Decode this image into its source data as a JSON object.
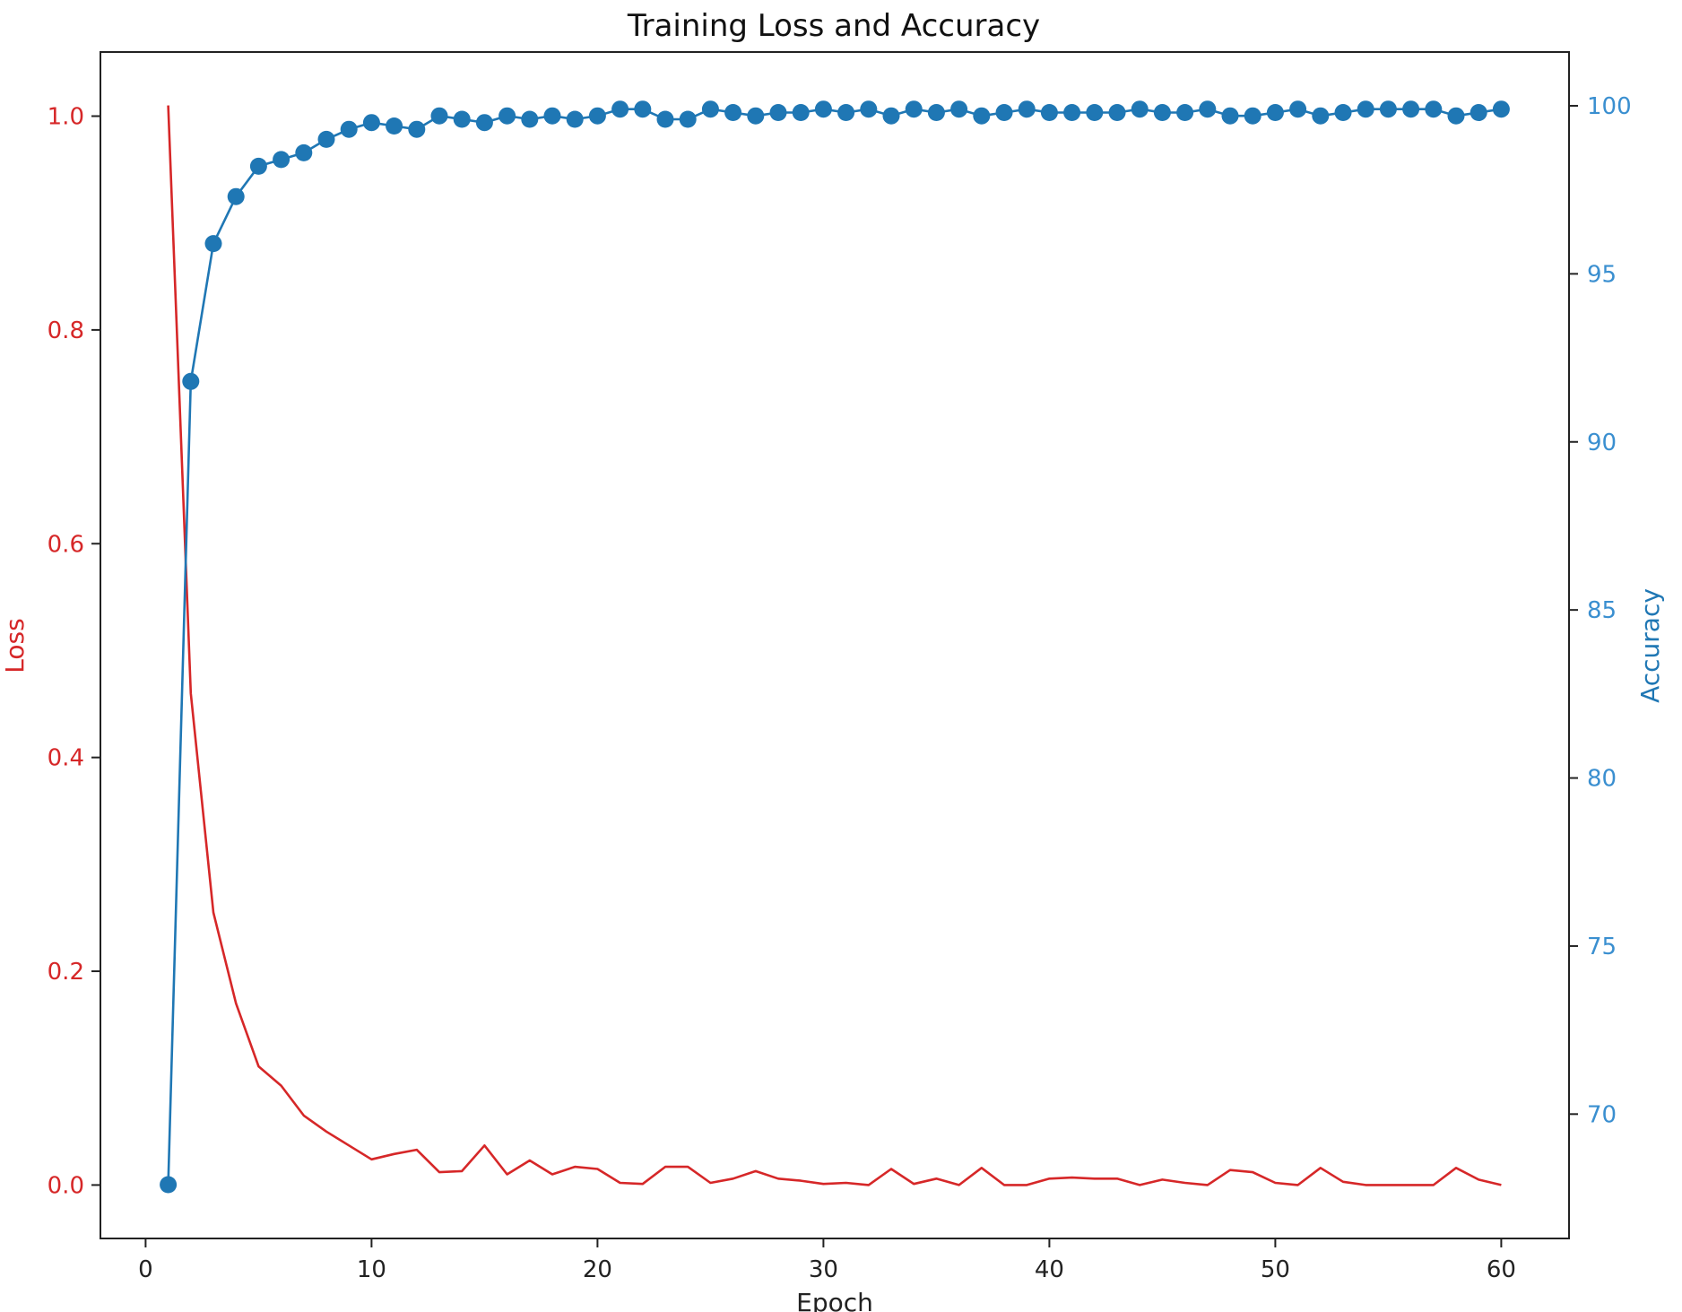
{
  "colors": {
    "loss": "#d62728",
    "accuracy": "#1f77b4",
    "accuracy_tick_text": "#3a8fd0",
    "frame": "#222222",
    "text": "#222222"
  },
  "chart_data": {
    "type": "line",
    "title": "Training Loss and Accuracy",
    "xlabel": "Epoch",
    "ylabel_left": "Loss",
    "ylabel_right": "Accuracy",
    "xlim": [
      -2,
      63
    ],
    "ylim_left": [
      -0.05,
      1.06
    ],
    "ylim_right": [
      66.3,
      101.6
    ],
    "xticks": [
      0,
      10,
      20,
      30,
      40,
      50,
      60
    ],
    "yticks_left": [
      0.0,
      0.2,
      0.4,
      0.6,
      0.8,
      1.0
    ],
    "yticks_right": [
      70,
      75,
      80,
      85,
      90,
      95,
      100
    ],
    "ytick_labels_left": [
      "0.0",
      "0.2",
      "0.4",
      "0.6",
      "0.8",
      "1.0"
    ],
    "grid": false,
    "legend": "none",
    "x": [
      1,
      2,
      3,
      4,
      5,
      6,
      7,
      8,
      9,
      10,
      11,
      12,
      13,
      14,
      15,
      16,
      17,
      18,
      19,
      20,
      21,
      22,
      23,
      24,
      25,
      26,
      27,
      28,
      29,
      30,
      31,
      32,
      33,
      34,
      35,
      36,
      37,
      38,
      39,
      40,
      41,
      42,
      43,
      44,
      45,
      46,
      47,
      48,
      49,
      50,
      51,
      52,
      53,
      54,
      55,
      56,
      57,
      58,
      59,
      60
    ],
    "series": [
      {
        "name": "Loss",
        "axis": "left",
        "marker": "none",
        "values": [
          1.01,
          0.46,
          0.255,
          0.17,
          0.111,
          0.093,
          0.065,
          0.05,
          0.037,
          0.024,
          0.029,
          0.033,
          0.012,
          0.013,
          0.037,
          0.01,
          0.023,
          0.01,
          0.017,
          0.015,
          0.002,
          0.001,
          0.017,
          0.017,
          0.002,
          0.006,
          0.013,
          0.006,
          0.004,
          0.001,
          0.002,
          0.0,
          0.015,
          0.001,
          0.006,
          0.0,
          0.016,
          0.0,
          0.0,
          0.006,
          0.007,
          0.006,
          0.006,
          0.0,
          0.005,
          0.002,
          0.0,
          0.014,
          0.012,
          0.002,
          0.0,
          0.016,
          0.003,
          0.0,
          0.0,
          0.0,
          0.0,
          0.016,
          0.005,
          0.0
        ]
      },
      {
        "name": "Accuracy",
        "axis": "right",
        "marker": "circle",
        "values": [
          67.9,
          91.8,
          95.9,
          97.3,
          98.2,
          98.4,
          98.6,
          99.0,
          99.3,
          99.5,
          99.4,
          99.3,
          99.7,
          99.6,
          99.5,
          99.7,
          99.6,
          99.7,
          99.6,
          99.7,
          99.9,
          99.9,
          99.6,
          99.6,
          99.9,
          99.8,
          99.7,
          99.8,
          99.8,
          99.9,
          99.8,
          99.9,
          99.7,
          99.9,
          99.8,
          99.9,
          99.7,
          99.8,
          99.9,
          99.8,
          99.8,
          99.8,
          99.8,
          99.9,
          99.8,
          99.8,
          99.9,
          99.7,
          99.7,
          99.8,
          99.9,
          99.7,
          99.8,
          99.9,
          99.9,
          99.9,
          99.9,
          99.7,
          99.8,
          99.9
        ]
      }
    ]
  }
}
